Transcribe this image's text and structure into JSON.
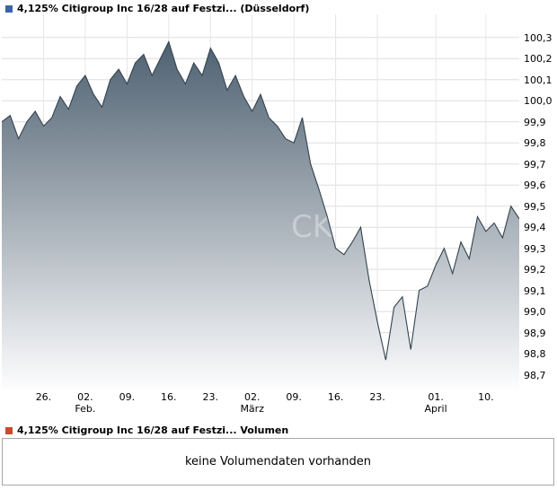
{
  "header": {
    "title": "4,125% Citigroup Inc 16/28 auf Festzi... (Düsseldorf)",
    "marker_color": "#3a63ad"
  },
  "volume": {
    "title": "4,125% Citigroup Inc 16/28 auf Festzi... Volumen",
    "marker_color": "#cc4a2e",
    "message": "keine Volumendaten vorhanden"
  },
  "watermark": "CK",
  "chart_data": {
    "type": "area",
    "title": "4,125% Citigroup Inc 16/28 auf Festzi... (Düsseldorf)",
    "ylabel": "",
    "xlabel": "",
    "ylim": [
      98.63,
      100.41
    ],
    "grid": true,
    "legend_position": "top-left",
    "line_color": "#32434f",
    "area_top_color": "#4e6070",
    "area_bottom_color": "#fdfdfe",
    "y_ticks": [
      {
        "v": 100.3,
        "label": "100,3"
      },
      {
        "v": 100.2,
        "label": "100,2"
      },
      {
        "v": 100.1,
        "label": "100,1"
      },
      {
        "v": 100.0,
        "label": "100,0"
      },
      {
        "v": 99.9,
        "label": "99,9"
      },
      {
        "v": 99.8,
        "label": "99,8"
      },
      {
        "v": 99.7,
        "label": "99,7"
      },
      {
        "v": 99.6,
        "label": "99,6"
      },
      {
        "v": 99.5,
        "label": "99,5"
      },
      {
        "v": 99.4,
        "label": "99,4"
      },
      {
        "v": 99.3,
        "label": "99,3"
      },
      {
        "v": 99.2,
        "label": "99,2"
      },
      {
        "v": 99.1,
        "label": "99,1"
      },
      {
        "v": 99.0,
        "label": "99,0"
      },
      {
        "v": 98.9,
        "label": "98,9"
      },
      {
        "v": 98.8,
        "label": "98,8"
      },
      {
        "v": 98.7,
        "label": "98,7"
      }
    ],
    "x_ticks": [
      {
        "i": 5,
        "label": "26.",
        "month": ""
      },
      {
        "i": 10,
        "label": "02.",
        "month": "Feb."
      },
      {
        "i": 15,
        "label": "09.",
        "month": ""
      },
      {
        "i": 20,
        "label": "16.",
        "month": ""
      },
      {
        "i": 25,
        "label": "23.",
        "month": ""
      },
      {
        "i": 30,
        "label": "02.",
        "month": "März"
      },
      {
        "i": 35,
        "label": "09.",
        "month": ""
      },
      {
        "i": 40,
        "label": "16.",
        "month": ""
      },
      {
        "i": 45,
        "label": "23.",
        "month": ""
      },
      {
        "i": 52,
        "label": "01.",
        "month": "April"
      },
      {
        "i": 58,
        "label": "10.",
        "month": ""
      }
    ],
    "values": [
      99.9,
      99.93,
      99.82,
      99.9,
      99.95,
      99.88,
      99.92,
      100.02,
      99.96,
      100.07,
      100.12,
      100.03,
      99.97,
      100.1,
      100.15,
      100.08,
      100.18,
      100.22,
      100.12,
      100.2,
      100.28,
      100.15,
      100.08,
      100.18,
      100.12,
      100.25,
      100.18,
      100.05,
      100.12,
      100.02,
      99.95,
      100.03,
      99.92,
      99.88,
      99.82,
      99.8,
      99.92,
      99.7,
      99.58,
      99.45,
      99.3,
      99.27,
      99.33,
      99.4,
      99.15,
      98.95,
      98.77,
      99.02,
      99.07,
      98.82,
      99.1,
      99.12,
      99.22,
      99.3,
      99.18,
      99.33,
      99.25,
      99.45,
      99.38,
      99.42,
      99.35,
      99.5,
      99.44
    ]
  }
}
